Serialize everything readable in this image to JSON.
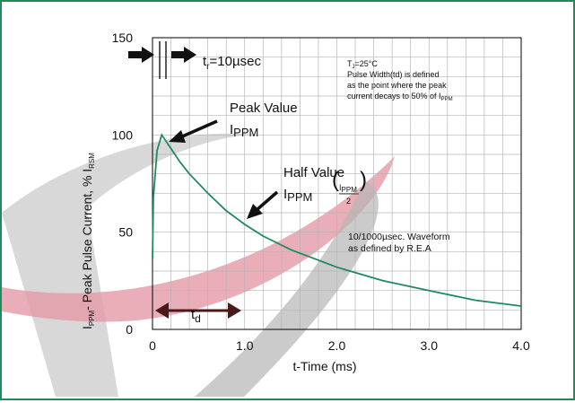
{
  "chart_data": {
    "type": "line",
    "title": "",
    "xlabel": "t-Time (ms)",
    "ylabel": {
      "base": "I",
      "sub1": "PPM",
      "mid": "- Peak Pulse Current, % I",
      "sub2": "RSM"
    },
    "xlim": [
      0,
      4.0
    ],
    "ylim": [
      0,
      150
    ],
    "x_ticks": [
      "0",
      "1.0",
      "2.0",
      "3.0",
      "4.0"
    ],
    "y_ticks": [
      "0",
      "50",
      "100",
      "150"
    ],
    "grid": true,
    "series": [
      {
        "color": "#1e8a5e",
        "x": [
          0,
          0.01,
          0.05,
          0.1,
          0.2,
          0.3,
          0.4,
          0.6,
          0.8,
          1.0,
          1.2,
          1.5,
          2.0,
          2.5,
          3.0,
          3.5,
          4.0
        ],
        "y": [
          36,
          68,
          92,
          100,
          93,
          86,
          80,
          70,
          61,
          54,
          48,
          41,
          32,
          25,
          20,
          15,
          12
        ]
      }
    ],
    "annotations": {
      "tr": {
        "base": "t",
        "sub": "r",
        "rest": "=10µsec"
      },
      "peak_value": {
        "line1": "Peak Value",
        "base": "I",
        "sub": "PPM"
      },
      "half_value": {
        "line1": "Half Value",
        "base": "I",
        "sub": "PPM",
        "frac_num": "I",
        "frac_num_sub": "PPM",
        "frac_den": "2"
      },
      "td": {
        "base": "t",
        "sub": "d"
      },
      "conditions": {
        "tj_base": "T",
        "tj_sub": "J",
        "tj_rest": "=25°C",
        "line2": "Pulse Width(td) is defined",
        "line3": "as the point where the peak",
        "line4": "current decays to 50% of I",
        "line4_sub": "PPM"
      },
      "waveform": {
        "line1": "10/1000µsec. Waveform",
        "line2": "as defined by R.E.A"
      }
    }
  },
  "colors": {
    "frame": "#1f8a5b",
    "curve": "#1e8a5e",
    "grid": "#b5b5b5",
    "arrow": "#111111",
    "td_arrow": "#4a1a1a"
  }
}
